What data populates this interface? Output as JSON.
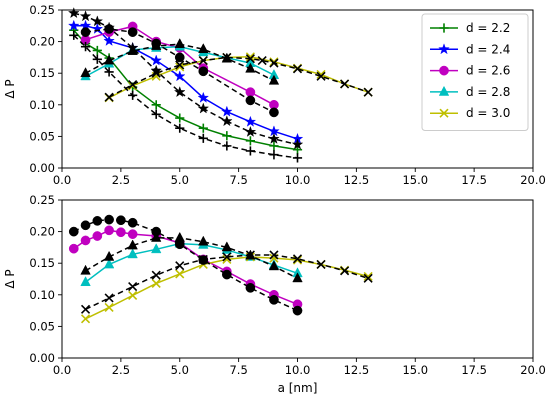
{
  "chart_data": [
    {
      "type": "line",
      "title": "",
      "xlabel": "",
      "ylabel": "Δ P",
      "xlim": [
        0,
        20
      ],
      "ylim": [
        0,
        0.25
      ],
      "xticks": [
        "0.0",
        "2.5",
        "5.0",
        "7.5",
        "10.0",
        "12.5",
        "15.0",
        "17.5",
        "20.0"
      ],
      "yticks": [
        "0.00",
        "0.05",
        "0.10",
        "0.15",
        "0.20",
        "0.25"
      ],
      "grid": false,
      "legend_position": "top-right",
      "series": [
        {
          "name": "d = 2.2",
          "color": "#008000",
          "marker": "plus",
          "style": "solid",
          "x": [
            0.5,
            1,
            1.5,
            2,
            3,
            4,
            5,
            6,
            7,
            8,
            9,
            10
          ],
          "y": [
            0.218,
            0.197,
            0.186,
            0.174,
            0.128,
            0.1,
            0.079,
            0.063,
            0.051,
            0.043,
            0.035,
            0.029
          ]
        },
        {
          "name": "d = 2.4",
          "color": "#0000ff",
          "marker": "star",
          "style": "solid",
          "x": [
            0.5,
            1,
            1.5,
            2,
            3,
            4,
            5,
            6,
            7,
            8,
            9,
            10
          ],
          "y": [
            0.225,
            0.225,
            0.22,
            0.201,
            0.19,
            0.17,
            0.145,
            0.111,
            0.089,
            0.073,
            0.058,
            0.046
          ]
        },
        {
          "name": "d = 2.6",
          "color": "#c000c0",
          "marker": "circle",
          "style": "solid",
          "x": [
            1,
            2,
            3,
            4,
            5,
            6,
            8,
            9
          ],
          "y": [
            0.203,
            0.215,
            0.224,
            0.2,
            0.19,
            0.158,
            0.12,
            0.1
          ]
        },
        {
          "name": "d = 2.8",
          "color": "#00bfbf",
          "marker": "triangle",
          "style": "solid",
          "x": [
            1,
            2,
            3,
            4,
            5,
            6,
            8,
            9
          ],
          "y": [
            0.145,
            0.165,
            0.187,
            0.19,
            0.192,
            0.183,
            0.166,
            0.147
          ]
        },
        {
          "name": "d = 3.0",
          "color": "#bfbf00",
          "marker": "x",
          "style": "solid",
          "x": [
            2,
            3,
            4,
            5,
            6,
            7,
            8,
            9,
            10,
            11,
            12,
            13
          ],
          "y": [
            0.111,
            0.13,
            0.145,
            0.16,
            0.17,
            0.175,
            0.176,
            0.168,
            0.158,
            0.148,
            0.133,
            0.12
          ]
        },
        {
          "name": "",
          "color": "#000000",
          "marker": "plus",
          "style": "dashed",
          "x": [
            0.5,
            1,
            1.5,
            2,
            3,
            4,
            5,
            6,
            7,
            8,
            9,
            10
          ],
          "y": [
            0.21,
            0.192,
            0.172,
            0.152,
            0.115,
            0.085,
            0.063,
            0.047,
            0.035,
            0.027,
            0.021,
            0.016
          ]
        },
        {
          "name": "",
          "color": "#000000",
          "marker": "star",
          "style": "dashed",
          "x": [
            0.5,
            1,
            1.5,
            2,
            3,
            4,
            5,
            6,
            7,
            8,
            9,
            10
          ],
          "y": [
            0.245,
            0.24,
            0.232,
            0.222,
            0.19,
            0.154,
            0.12,
            0.094,
            0.074,
            0.057,
            0.046,
            0.037
          ]
        },
        {
          "name": "",
          "color": "#000000",
          "marker": "circle",
          "style": "dashed",
          "x": [
            1,
            2,
            3,
            4,
            5,
            6,
            8,
            9
          ],
          "y": [
            0.215,
            0.22,
            0.215,
            0.197,
            0.175,
            0.153,
            0.107,
            0.088
          ]
        },
        {
          "name": "",
          "color": "#000000",
          "marker": "triangle",
          "style": "dashed",
          "x": [
            1,
            2,
            3,
            4,
            5,
            6,
            7,
            8,
            9
          ],
          "y": [
            0.15,
            0.17,
            0.185,
            0.193,
            0.196,
            0.188,
            0.173,
            0.157,
            0.138
          ]
        },
        {
          "name": "",
          "color": "#000000",
          "marker": "x",
          "style": "dashed",
          "x": [
            2,
            3,
            4,
            5,
            6,
            7,
            8,
            8.5,
            9,
            10,
            11,
            12,
            13
          ],
          "y": [
            0.112,
            0.132,
            0.15,
            0.163,
            0.17,
            0.175,
            0.173,
            0.17,
            0.166,
            0.157,
            0.145,
            0.133,
            0.12
          ]
        }
      ]
    },
    {
      "type": "line",
      "title": "",
      "xlabel": "a [nm]",
      "ylabel": "Δ P",
      "xlim": [
        0,
        20
      ],
      "ylim": [
        0,
        0.25
      ],
      "xticks": [
        "0.0",
        "2.5",
        "5.0",
        "7.5",
        "10.0",
        "12.5",
        "15.0",
        "17.5",
        "20.0"
      ],
      "yticks": [
        "0.00",
        "0.05",
        "0.10",
        "0.15",
        "0.20",
        "0.25"
      ],
      "grid": false,
      "series": [
        {
          "name": "",
          "color": "#c000c0",
          "marker": "circle",
          "style": "solid",
          "x": [
            0.5,
            1,
            1.5,
            2,
            2.5,
            3,
            4,
            5,
            6,
            7,
            8,
            9,
            10
          ],
          "y": [
            0.173,
            0.186,
            0.193,
            0.202,
            0.199,
            0.196,
            0.193,
            0.182,
            0.156,
            0.137,
            0.117,
            0.1,
            0.085
          ]
        },
        {
          "name": "",
          "color": "#00bfbf",
          "marker": "triangle",
          "style": "solid",
          "x": [
            1,
            2,
            3,
            4,
            5,
            6,
            7,
            8,
            9,
            10
          ],
          "y": [
            0.12,
            0.148,
            0.164,
            0.172,
            0.181,
            0.179,
            0.171,
            0.16,
            0.147,
            0.134
          ]
        },
        {
          "name": "",
          "color": "#bfbf00",
          "marker": "x",
          "style": "solid",
          "x": [
            1,
            2,
            3,
            4,
            5,
            6,
            7,
            8,
            9,
            10,
            11,
            12,
            13
          ],
          "y": [
            0.062,
            0.08,
            0.099,
            0.118,
            0.133,
            0.148,
            0.156,
            0.16,
            0.158,
            0.155,
            0.148,
            0.139,
            0.129
          ]
        },
        {
          "name": "",
          "color": "#000000",
          "marker": "circle",
          "style": "dashed",
          "x": [
            0.5,
            1,
            1.5,
            2,
            2.5,
            3,
            4,
            5,
            6,
            7,
            8,
            9,
            10
          ],
          "y": [
            0.2,
            0.21,
            0.217,
            0.219,
            0.218,
            0.214,
            0.2,
            0.18,
            0.155,
            0.132,
            0.111,
            0.092,
            0.075
          ]
        },
        {
          "name": "",
          "color": "#000000",
          "marker": "triangle",
          "style": "dashed",
          "x": [
            1,
            2,
            3,
            4,
            5,
            6,
            7,
            8,
            9,
            10
          ],
          "y": [
            0.138,
            0.16,
            0.178,
            0.19,
            0.19,
            0.184,
            0.175,
            0.162,
            0.145,
            0.126
          ]
        },
        {
          "name": "",
          "color": "#000000",
          "marker": "x",
          "style": "dashed",
          "x": [
            1,
            2,
            3,
            4,
            5,
            6,
            7,
            8,
            9,
            10,
            11,
            12,
            13
          ],
          "y": [
            0.077,
            0.095,
            0.113,
            0.131,
            0.146,
            0.156,
            0.16,
            0.163,
            0.163,
            0.157,
            0.148,
            0.138,
            0.126
          ]
        }
      ]
    }
  ]
}
